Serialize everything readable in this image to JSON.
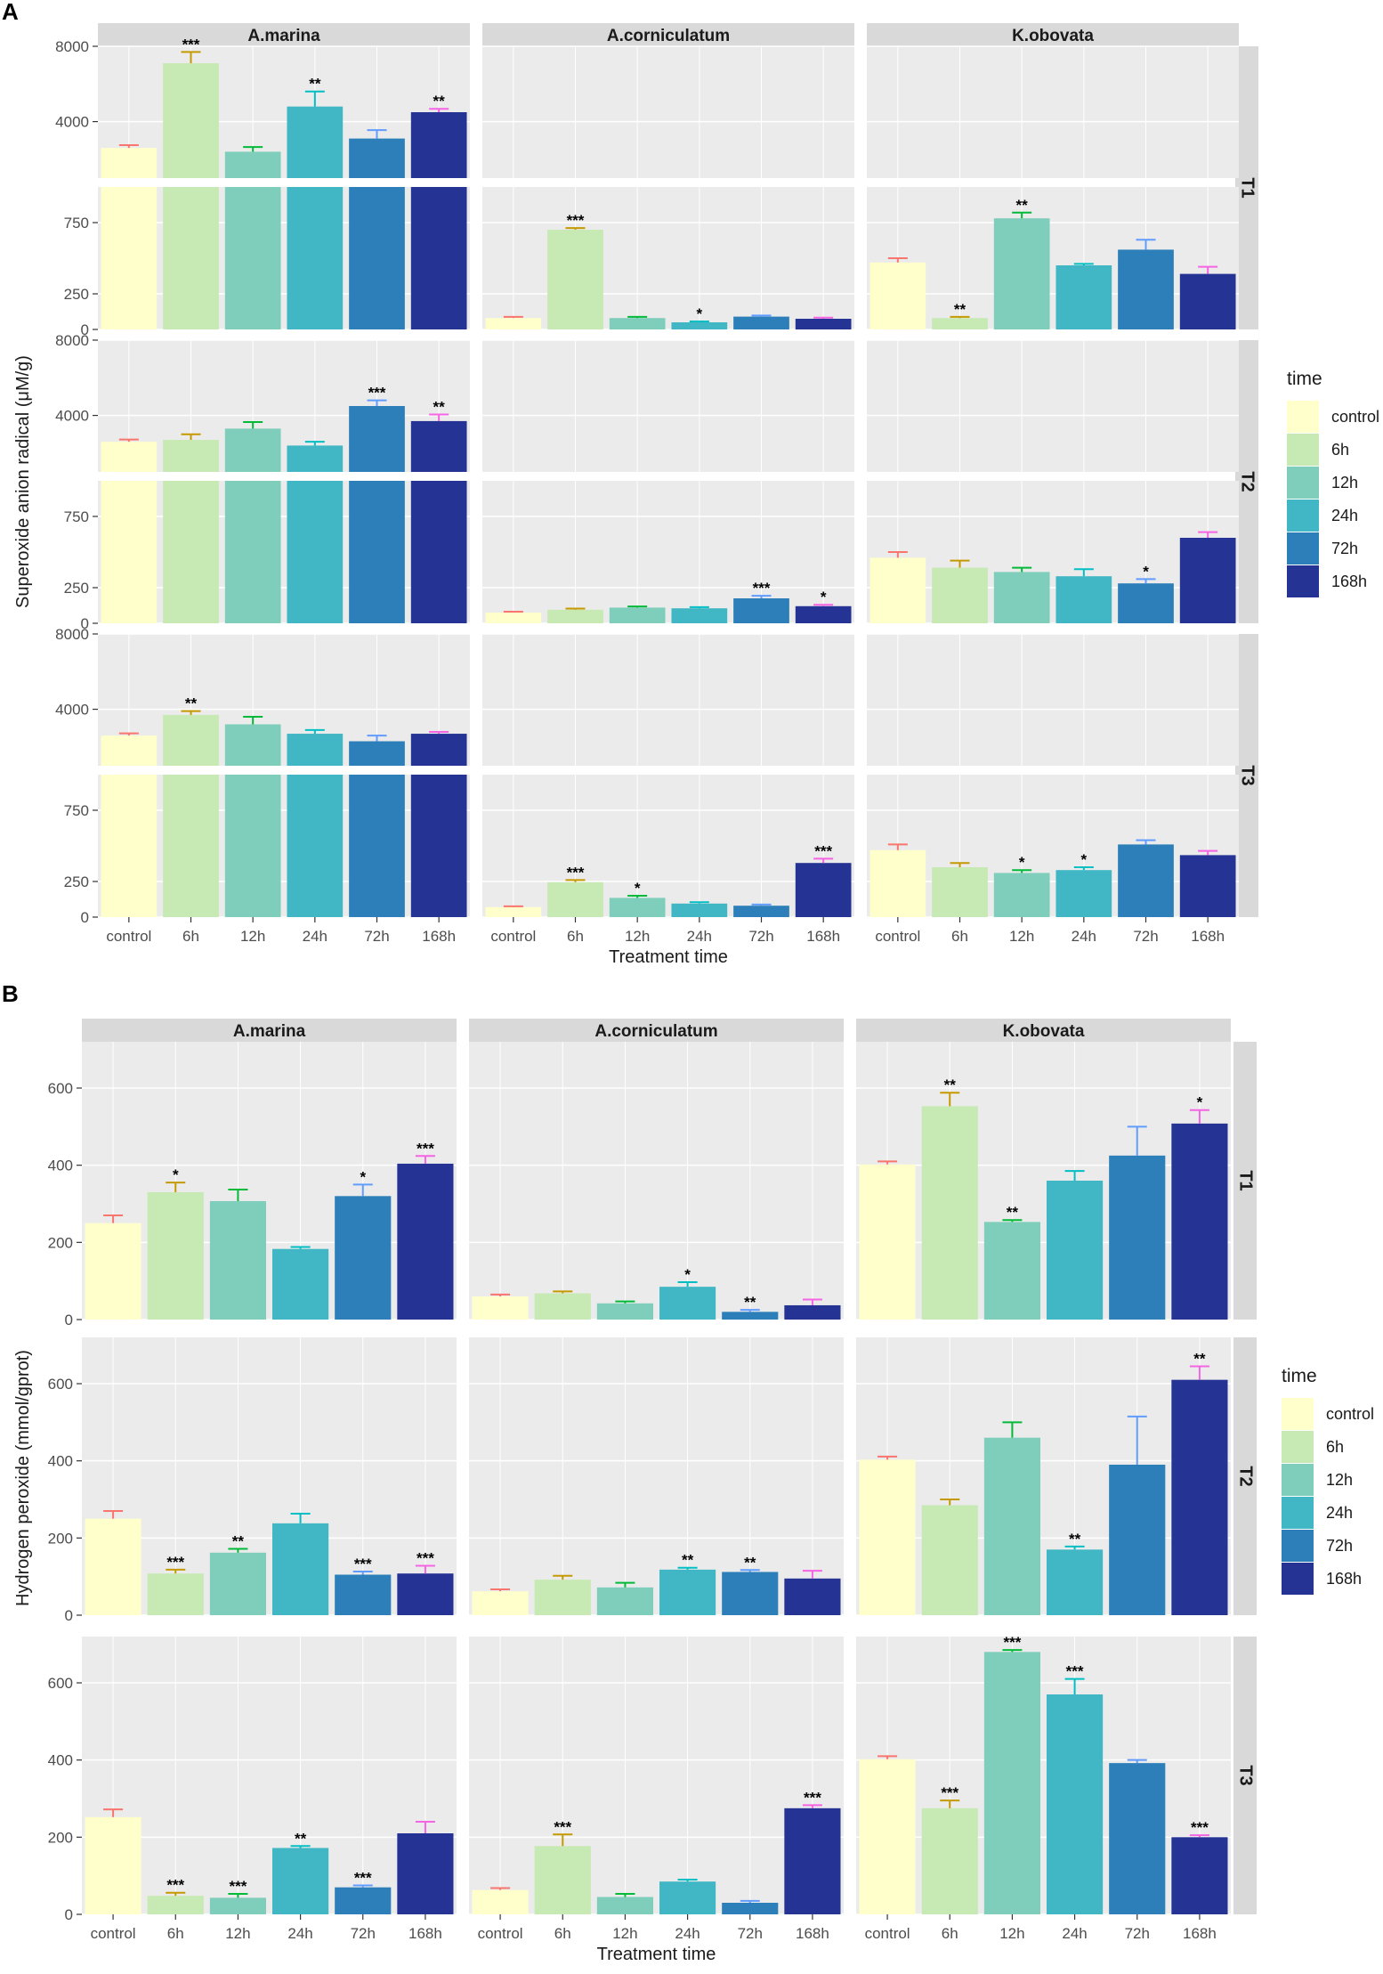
{
  "panel_labels": {
    "A": "A",
    "B": "B"
  },
  "colors": {
    "control": "#FFFFCC",
    "6h": "#C7E9B4",
    "12h": "#7FCDBB",
    "24h": "#41B6C4",
    "72h": "#2C7FB8",
    "168h": "#253494",
    "err_control": "#F8766D",
    "err_6h": "#C49A00",
    "err_12h": "#00BA38",
    "err_24h": "#00BFC4",
    "err_72h": "#619CFF",
    "err_168h": "#F564E3",
    "panel_bg": "#EBEBEB",
    "strip_bg": "#D9D9D9"
  },
  "chart_data": [
    {
      "id": "A",
      "type": "bar",
      "title": "",
      "xlabel": "Treatment time",
      "ylabel": "Superoxide anion radical (μM/g)",
      "categories": [
        "control",
        "6h",
        "12h",
        "24h",
        "72h",
        "168h"
      ],
      "species": [
        "A.marina",
        "A.corniculatum",
        "K.obovata"
      ],
      "treatments": [
        "T1",
        "T2",
        "T3"
      ],
      "legend": {
        "title": "time",
        "items": [
          "control",
          "6h",
          "12h",
          "24h",
          "72h",
          "168h"
        ]
      },
      "axis_break": true,
      "upper_range": [
        1000,
        8000
      ],
      "upper_ticks": [
        4000,
        8000
      ],
      "lower_range": [
        0,
        1000
      ],
      "lower_ticks": [
        0,
        250,
        750
      ],
      "values": {
        "T1": {
          "A.marina": [
            2600,
            7100,
            2400,
            4800,
            3100,
            4500
          ],
          "A.corniculatum": [
            80,
            700,
            80,
            50,
            90,
            75
          ],
          "K.obovata": [
            470,
            80,
            780,
            450,
            560,
            390
          ]
        },
        "T2": {
          "A.marina": [
            2600,
            2700,
            3300,
            2400,
            4500,
            3700
          ],
          "A.corniculatum": [
            75,
            95,
            110,
            105,
            175,
            120
          ],
          "K.obovata": [
            460,
            390,
            360,
            330,
            280,
            600
          ]
        },
        "T3": {
          "A.marina": [
            2600,
            3700,
            3200,
            2700,
            2300,
            2700
          ],
          "A.corniculatum": [
            70,
            245,
            135,
            95,
            80,
            380
          ],
          "K.obovata": [
            470,
            350,
            310,
            330,
            510,
            435
          ]
        }
      },
      "errors": {
        "T1": {
          "A.marina": [
            150,
            600,
            250,
            800,
            450,
            180
          ],
          "A.corniculatum": [
            8,
            12,
            8,
            6,
            8,
            8
          ],
          "K.obovata": [
            30,
            8,
            40,
            10,
            70,
            50
          ]
        },
        "T2": {
          "A.marina": [
            120,
            300,
            350,
            200,
            300,
            350
          ],
          "A.corniculatum": [
            6,
            8,
            8,
            8,
            18,
            10
          ],
          "K.obovata": [
            40,
            50,
            30,
            50,
            30,
            40
          ]
        },
        "T3": {
          "A.marina": [
            120,
            200,
            400,
            200,
            300,
            100
          ],
          "A.corniculatum": [
            6,
            15,
            15,
            10,
            8,
            30
          ],
          "K.obovata": [
            40,
            30,
            20,
            20,
            30,
            30
          ]
        }
      },
      "significance": {
        "T1": {
          "A.marina": [
            "",
            "***",
            "",
            "**",
            "",
            "**"
          ],
          "A.corniculatum": [
            "",
            "***",
            "",
            "*",
            "",
            ""
          ],
          "K.obovata": [
            "",
            "**",
            "**",
            "",
            "",
            ""
          ]
        },
        "T2": {
          "A.marina": [
            "",
            "",
            "",
            "",
            "***",
            "**"
          ],
          "A.corniculatum": [
            "",
            "",
            "",
            "",
            "***",
            "*"
          ],
          "K.obovata": [
            "",
            "",
            "",
            "",
            "*",
            ""
          ]
        },
        "T3": {
          "A.marina": [
            "",
            "**",
            "",
            "",
            "",
            ""
          ],
          "A.corniculatum": [
            "",
            "***",
            "*",
            "",
            "",
            "***"
          ],
          "K.obovata": [
            "",
            "",
            "*",
            "*",
            "",
            ""
          ]
        }
      }
    },
    {
      "id": "B",
      "type": "bar",
      "title": "",
      "xlabel": "Treatment time",
      "ylabel": "Hydrogen peroxide (mmol/gprot)",
      "categories": [
        "control",
        "6h",
        "12h",
        "24h",
        "72h",
        "168h"
      ],
      "species": [
        "A.marina",
        "A.corniculatum",
        "K.obovata"
      ],
      "treatments": [
        "T1",
        "T2",
        "T3"
      ],
      "legend": {
        "title": "time",
        "items": [
          "control",
          "6h",
          "12h",
          "24h",
          "72h",
          "168h"
        ]
      },
      "ylim": [
        0,
        720
      ],
      "yticks": [
        0,
        200,
        400,
        600
      ],
      "values": {
        "T1": {
          "A.marina": [
            250,
            330,
            307,
            183,
            320,
            404
          ],
          "A.corniculatum": [
            60,
            68,
            42,
            85,
            20,
            37
          ],
          "K.obovata": [
            402,
            553,
            253,
            360,
            425,
            508
          ]
        },
        "T2": {
          "A.marina": [
            250,
            108,
            162,
            238,
            105,
            108
          ],
          "A.corniculatum": [
            62,
            92,
            72,
            118,
            112,
            95
          ],
          "K.obovata": [
            403,
            285,
            460,
            170,
            390,
            610
          ]
        },
        "T3": {
          "A.marina": [
            252,
            48,
            43,
            172,
            70,
            210
          ],
          "A.corniculatum": [
            63,
            177,
            45,
            85,
            30,
            275
          ],
          "K.obovata": [
            402,
            275,
            680,
            570,
            392,
            200
          ]
        }
      },
      "errors": {
        "T1": {
          "A.marina": [
            20,
            25,
            30,
            5,
            30,
            20
          ],
          "A.corniculatum": [
            5,
            5,
            5,
            12,
            5,
            15
          ],
          "K.obovata": [
            8,
            35,
            5,
            25,
            75,
            35
          ]
        },
        "T2": {
          "A.marina": [
            20,
            10,
            10,
            25,
            8,
            20
          ],
          "A.corniculatum": [
            5,
            10,
            12,
            5,
            5,
            20
          ],
          "K.obovata": [
            8,
            15,
            40,
            8,
            125,
            35
          ]
        },
        "T3": {
          "A.marina": [
            20,
            8,
            10,
            5,
            5,
            30
          ],
          "A.corniculatum": [
            5,
            30,
            8,
            5,
            5,
            8
          ],
          "K.obovata": [
            8,
            20,
            5,
            40,
            8,
            5
          ]
        }
      },
      "significance": {
        "T1": {
          "A.marina": [
            "",
            "*",
            "",
            "",
            "*",
            "***"
          ],
          "A.corniculatum": [
            "",
            "",
            "",
            "*",
            "**",
            ""
          ],
          "K.obovata": [
            "",
            "**",
            "**",
            "",
            "",
            "*"
          ]
        },
        "T2": {
          "A.marina": [
            "",
            "***",
            "**",
            "",
            "***",
            "***"
          ],
          "A.corniculatum": [
            "",
            "",
            "",
            "**",
            "**",
            ""
          ],
          "K.obovata": [
            "",
            "",
            "",
            "**",
            "",
            "**"
          ]
        },
        "T3": {
          "A.marina": [
            "",
            "***",
            "***",
            "**",
            "***",
            ""
          ],
          "A.corniculatum": [
            "",
            "***",
            "",
            "",
            "",
            "***"
          ],
          "K.obovata": [
            "",
            "***",
            "***",
            "***",
            "",
            "***"
          ]
        }
      }
    }
  ]
}
